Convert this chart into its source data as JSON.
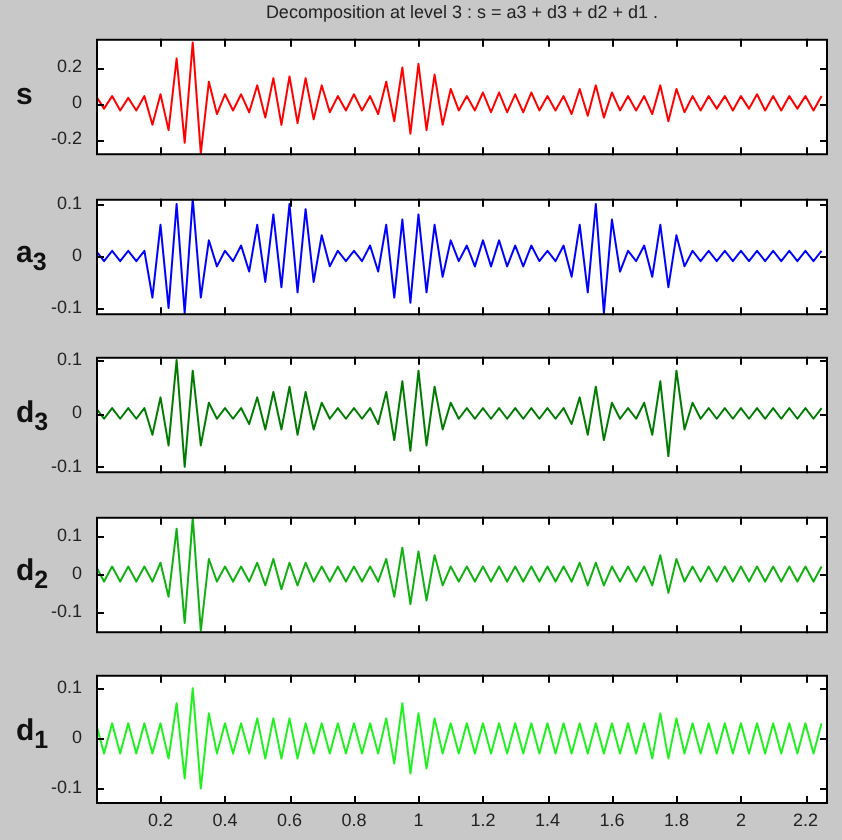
{
  "chart_data": [
    {
      "type": "line",
      "title": "Decomposition at level 3 : s = a3 + d3 + d2 + d1 .",
      "ylabel": "s",
      "tick_labels": "y",
      "x": [
        0,
        0.025,
        0.05,
        0.075,
        0.1,
        0.125,
        0.15,
        0.175,
        0.2,
        0.225,
        0.25,
        0.275,
        0.3,
        0.325,
        0.35,
        0.375,
        0.4,
        0.425,
        0.45,
        0.475,
        0.5,
        0.525,
        0.55,
        0.575,
        0.6,
        0.625,
        0.65,
        0.675,
        0.7,
        0.725,
        0.75,
        0.775,
        0.8,
        0.825,
        0.85,
        0.875,
        0.9,
        0.925,
        0.95,
        0.975,
        1,
        1.025,
        1.05,
        1.075,
        1.1,
        1.125,
        1.15,
        1.175,
        1.2,
        1.225,
        1.25,
        1.275,
        1.3,
        1.325,
        1.35,
        1.375,
        1.4,
        1.425,
        1.45,
        1.475,
        1.5,
        1.525,
        1.55,
        1.575,
        1.6,
        1.625,
        1.65,
        1.675,
        1.7,
        1.725,
        1.75,
        1.775,
        1.8,
        1.825,
        1.85,
        1.875,
        1.9,
        1.925,
        1.95,
        1.975,
        2,
        2.025,
        2.05,
        2.075,
        2.1,
        2.125,
        2.15,
        2.175,
        2.2,
        2.225,
        2.25
      ],
      "series": [
        {
          "color": "#ff0000",
          "values": [
            0.04,
            -0.03,
            0.04,
            -0.04,
            0.03,
            -0.04,
            0.04,
            -0.12,
            0.05,
            -0.15,
            0.25,
            -0.22,
            0.34,
            -0.28,
            0.12,
            -0.06,
            0.05,
            -0.04,
            0.05,
            -0.05,
            0.1,
            -0.08,
            0.14,
            -0.12,
            0.15,
            -0.11,
            0.14,
            -0.09,
            0.1,
            -0.05,
            0.04,
            -0.04,
            0.05,
            -0.04,
            0.04,
            -0.06,
            0.12,
            -0.1,
            0.2,
            -0.17,
            0.22,
            -0.15,
            0.16,
            -0.12,
            0.08,
            -0.04,
            0.04,
            -0.04,
            0.06,
            -0.05,
            0.06,
            -0.05,
            0.05,
            -0.05,
            0.06,
            -0.04,
            0.04,
            -0.04,
            0.04,
            -0.06,
            0.08,
            -0.07,
            0.1,
            -0.08,
            0.06,
            -0.04,
            0.04,
            -0.04,
            0.04,
            -0.06,
            0.1,
            -0.1,
            0.08,
            -0.05,
            0.04,
            -0.04,
            0.04,
            -0.03,
            0.04,
            -0.04,
            0.04,
            -0.03,
            0.05,
            -0.04,
            0.04,
            -0.04,
            0.04,
            -0.03,
            0.04,
            -0.04,
            0.04
          ]
        }
      ],
      "xlim": [
        0,
        2.27
      ],
      "ylim": [
        -0.29,
        0.36
      ],
      "xticks": [
        0.2,
        0.4,
        0.6,
        0.8,
        1,
        1.2,
        1.4,
        1.6,
        1.8,
        2,
        2.2
      ],
      "yticks": [
        -0.2,
        0,
        0.2
      ]
    },
    {
      "type": "line",
      "ylabel": "a$_{3}$",
      "tick_labels": "y",
      "x": [
        0,
        0.025,
        0.05,
        0.075,
        0.1,
        0.125,
        0.15,
        0.175,
        0.2,
        0.225,
        0.25,
        0.275,
        0.3,
        0.325,
        0.35,
        0.375,
        0.4,
        0.425,
        0.45,
        0.475,
        0.5,
        0.525,
        0.55,
        0.575,
        0.6,
        0.625,
        0.65,
        0.675,
        0.7,
        0.725,
        0.75,
        0.775,
        0.8,
        0.825,
        0.85,
        0.875,
        0.9,
        0.925,
        0.95,
        0.975,
        1,
        1.025,
        1.05,
        1.075,
        1.1,
        1.125,
        1.15,
        1.175,
        1.2,
        1.225,
        1.25,
        1.275,
        1.3,
        1.325,
        1.35,
        1.375,
        1.4,
        1.425,
        1.45,
        1.475,
        1.5,
        1.525,
        1.55,
        1.575,
        1.6,
        1.625,
        1.65,
        1.675,
        1.7,
        1.725,
        1.75,
        1.775,
        1.8,
        1.825,
        1.85,
        1.875,
        1.9,
        1.925,
        1.95,
        1.975,
        2,
        2.025,
        2.05,
        2.075,
        2.1,
        2.125,
        2.15,
        2.175,
        2.2,
        2.225,
        2.25
      ],
      "series": [
        {
          "color": "#0000ff",
          "values": [
            0.01,
            -0.01,
            0.01,
            -0.01,
            0.01,
            -0.01,
            0.01,
            -0.08,
            0.06,
            -0.1,
            0.1,
            -0.11,
            0.11,
            -0.08,
            0.03,
            -0.02,
            0.01,
            -0.01,
            0.02,
            -0.03,
            0.06,
            -0.05,
            0.08,
            -0.06,
            0.1,
            -0.07,
            0.09,
            -0.05,
            0.04,
            -0.02,
            0.01,
            -0.01,
            0.01,
            -0.01,
            0.02,
            -0.03,
            0.06,
            -0.08,
            0.07,
            -0.09,
            0.08,
            -0.07,
            0.06,
            -0.04,
            0.03,
            -0.01,
            0.02,
            -0.02,
            0.03,
            -0.02,
            0.03,
            -0.02,
            0.02,
            -0.02,
            0.02,
            -0.01,
            0.01,
            -0.01,
            0.02,
            -0.04,
            0.06,
            -0.07,
            0.1,
            -0.11,
            0.07,
            -0.03,
            0.01,
            -0.01,
            0.02,
            -0.04,
            0.06,
            -0.06,
            0.04,
            -0.02,
            0.01,
            -0.01,
            0.01,
            -0.01,
            0.01,
            -0.01,
            0.01,
            -0.01,
            0.01,
            -0.01,
            0.01,
            -0.01,
            0.01,
            -0.01,
            0.01,
            -0.01,
            0.01
          ]
        }
      ],
      "xlim": [
        0,
        2.27
      ],
      "ylim": [
        -0.114,
        0.11
      ],
      "xticks": [
        0.2,
        0.4,
        0.6,
        0.8,
        1,
        1.2,
        1.4,
        1.6,
        1.8,
        2,
        2.2
      ],
      "yticks": [
        -0.1,
        0,
        0.1
      ]
    },
    {
      "type": "line",
      "ylabel": "d$_{3}$",
      "tick_labels": "y",
      "x": [
        0,
        0.025,
        0.05,
        0.075,
        0.1,
        0.125,
        0.15,
        0.175,
        0.2,
        0.225,
        0.25,
        0.275,
        0.3,
        0.325,
        0.35,
        0.375,
        0.4,
        0.425,
        0.45,
        0.475,
        0.5,
        0.525,
        0.55,
        0.575,
        0.6,
        0.625,
        0.65,
        0.675,
        0.7,
        0.725,
        0.75,
        0.775,
        0.8,
        0.825,
        0.85,
        0.875,
        0.9,
        0.925,
        0.95,
        0.975,
        1,
        1.025,
        1.05,
        1.075,
        1.1,
        1.125,
        1.15,
        1.175,
        1.2,
        1.225,
        1.25,
        1.275,
        1.3,
        1.325,
        1.35,
        1.375,
        1.4,
        1.425,
        1.45,
        1.475,
        1.5,
        1.525,
        1.55,
        1.575,
        1.6,
        1.625,
        1.65,
        1.675,
        1.7,
        1.725,
        1.75,
        1.775,
        1.8,
        1.825,
        1.85,
        1.875,
        1.9,
        1.925,
        1.95,
        1.975,
        2,
        2.025,
        2.05,
        2.075,
        2.1,
        2.125,
        2.15,
        2.175,
        2.2,
        2.225,
        2.25
      ],
      "series": [
        {
          "color": "#007a00",
          "values": [
            0.01,
            -0.01,
            0.01,
            -0.01,
            0.01,
            -0.01,
            0.01,
            -0.04,
            0.03,
            -0.06,
            0.1,
            -0.1,
            0.08,
            -0.06,
            0.02,
            -0.01,
            0.01,
            -0.01,
            0.01,
            -0.02,
            0.03,
            -0.03,
            0.04,
            -0.03,
            0.05,
            -0.04,
            0.04,
            -0.03,
            0.02,
            -0.01,
            0.01,
            -0.01,
            0.01,
            -0.01,
            0.01,
            -0.02,
            0.04,
            -0.05,
            0.06,
            -0.07,
            0.08,
            -0.06,
            0.05,
            -0.03,
            0.02,
            -0.01,
            0.01,
            -0.01,
            0.01,
            -0.01,
            0.01,
            -0.01,
            0.01,
            -0.01,
            0.01,
            -0.01,
            0.01,
            -0.01,
            0.01,
            -0.02,
            0.03,
            -0.04,
            0.05,
            -0.05,
            0.02,
            -0.01,
            0.01,
            -0.01,
            0.02,
            -0.04,
            0.06,
            -0.08,
            0.08,
            -0.03,
            0.02,
            -0.01,
            0.01,
            -0.01,
            0.01,
            -0.01,
            0.01,
            -0.01,
            0.01,
            -0.01,
            0.01,
            -0.01,
            0.01,
            -0.01,
            0.01,
            -0.01,
            0.01
          ]
        }
      ],
      "xlim": [
        0,
        2.27
      ],
      "ylim": [
        -0.112,
        0.106
      ],
      "xticks": [
        0.2,
        0.4,
        0.6,
        0.8,
        1,
        1.2,
        1.4,
        1.6,
        1.8,
        2,
        2.2
      ],
      "yticks": [
        -0.1,
        0,
        0.1
      ]
    },
    {
      "type": "line",
      "ylabel": "d$_{2}$",
      "tick_labels": "y",
      "x": [
        0,
        0.025,
        0.05,
        0.075,
        0.1,
        0.125,
        0.15,
        0.175,
        0.2,
        0.225,
        0.25,
        0.275,
        0.3,
        0.325,
        0.35,
        0.375,
        0.4,
        0.425,
        0.45,
        0.475,
        0.5,
        0.525,
        0.55,
        0.575,
        0.6,
        0.625,
        0.65,
        0.675,
        0.7,
        0.725,
        0.75,
        0.775,
        0.8,
        0.825,
        0.85,
        0.875,
        0.9,
        0.925,
        0.95,
        0.975,
        1,
        1.025,
        1.05,
        1.075,
        1.1,
        1.125,
        1.15,
        1.175,
        1.2,
        1.225,
        1.25,
        1.275,
        1.3,
        1.325,
        1.35,
        1.375,
        1.4,
        1.425,
        1.45,
        1.475,
        1.5,
        1.525,
        1.55,
        1.575,
        1.6,
        1.625,
        1.65,
        1.675,
        1.7,
        1.725,
        1.75,
        1.775,
        1.8,
        1.825,
        1.85,
        1.875,
        1.9,
        1.925,
        1.95,
        1.975,
        2,
        2.025,
        2.05,
        2.075,
        2.1,
        2.125,
        2.15,
        2.175,
        2.2,
        2.225,
        2.25
      ],
      "series": [
        {
          "color": "#10b010",
          "values": [
            0.02,
            -0.02,
            0.02,
            -0.02,
            0.02,
            -0.02,
            0.02,
            -0.02,
            0.03,
            -0.06,
            0.12,
            -0.13,
            0.15,
            -0.15,
            0.04,
            -0.02,
            0.02,
            -0.02,
            0.02,
            -0.02,
            0.03,
            -0.03,
            0.04,
            -0.04,
            0.03,
            -0.03,
            0.03,
            -0.02,
            0.02,
            -0.02,
            0.02,
            -0.02,
            0.02,
            -0.02,
            0.02,
            -0.02,
            0.04,
            -0.06,
            0.07,
            -0.08,
            0.06,
            -0.07,
            0.05,
            -0.03,
            0.02,
            -0.02,
            0.02,
            -0.02,
            0.02,
            -0.02,
            0.02,
            -0.02,
            0.02,
            -0.02,
            0.02,
            -0.02,
            0.02,
            -0.02,
            0.02,
            -0.02,
            0.03,
            -0.03,
            0.03,
            -0.03,
            0.02,
            -0.02,
            0.02,
            -0.02,
            0.02,
            -0.03,
            0.05,
            -0.05,
            0.04,
            -0.02,
            0.02,
            -0.02,
            0.02,
            -0.02,
            0.02,
            -0.02,
            0.02,
            -0.02,
            0.02,
            -0.02,
            0.02,
            -0.02,
            0.02,
            -0.02,
            0.02,
            -0.02,
            0.02
          ]
        }
      ],
      "xlim": [
        0,
        2.27
      ],
      "ylim": [
        -0.157,
        0.152
      ],
      "xticks": [
        0.2,
        0.4,
        0.6,
        0.8,
        1,
        1.2,
        1.4,
        1.6,
        1.8,
        2,
        2.2
      ],
      "yticks": [
        -0.1,
        0,
        0.1
      ]
    },
    {
      "type": "line",
      "ylabel": "d$_{1}$",
      "x": [
        0,
        0.025,
        0.05,
        0.075,
        0.1,
        0.125,
        0.15,
        0.175,
        0.2,
        0.225,
        0.25,
        0.275,
        0.3,
        0.325,
        0.35,
        0.375,
        0.4,
        0.425,
        0.45,
        0.475,
        0.5,
        0.525,
        0.55,
        0.575,
        0.6,
        0.625,
        0.65,
        0.675,
        0.7,
        0.725,
        0.75,
        0.775,
        0.8,
        0.825,
        0.85,
        0.875,
        0.9,
        0.925,
        0.95,
        0.975,
        1,
        1.025,
        1.05,
        1.075,
        1.1,
        1.125,
        1.15,
        1.175,
        1.2,
        1.225,
        1.25,
        1.275,
        1.3,
        1.325,
        1.35,
        1.375,
        1.4,
        1.425,
        1.45,
        1.475,
        1.5,
        1.525,
        1.55,
        1.575,
        1.6,
        1.625,
        1.65,
        1.675,
        1.7,
        1.725,
        1.75,
        1.775,
        1.8,
        1.825,
        1.85,
        1.875,
        1.9,
        1.925,
        1.95,
        1.975,
        2,
        2.025,
        2.05,
        2.075,
        2.1,
        2.125,
        2.15,
        2.175,
        2.2,
        2.225,
        2.25
      ],
      "series": [
        {
          "color": "#20f020",
          "values": [
            0.03,
            -0.03,
            0.03,
            -0.03,
            0.03,
            -0.03,
            0.03,
            -0.03,
            0.03,
            -0.04,
            0.07,
            -0.08,
            0.1,
            -0.1,
            0.05,
            -0.03,
            0.03,
            -0.03,
            0.03,
            -0.03,
            0.04,
            -0.04,
            0.04,
            -0.04,
            0.04,
            -0.04,
            0.03,
            -0.03,
            0.03,
            -0.03,
            0.03,
            -0.03,
            0.03,
            -0.03,
            0.03,
            -0.03,
            0.04,
            -0.05,
            0.07,
            -0.07,
            0.05,
            -0.06,
            0.04,
            -0.03,
            0.03,
            -0.03,
            0.03,
            -0.03,
            0.03,
            -0.03,
            0.03,
            -0.03,
            0.03,
            -0.03,
            0.03,
            -0.03,
            0.03,
            -0.03,
            0.03,
            -0.03,
            0.03,
            -0.03,
            0.03,
            -0.03,
            0.03,
            -0.03,
            0.03,
            -0.03,
            0.03,
            -0.04,
            0.05,
            -0.04,
            0.04,
            -0.03,
            0.03,
            -0.03,
            0.03,
            -0.03,
            0.03,
            -0.03,
            0.03,
            -0.03,
            0.03,
            -0.03,
            0.03,
            -0.03,
            0.03,
            -0.03,
            0.03,
            -0.03,
            0.03
          ]
        }
      ],
      "xlim": [
        0,
        2.27
      ],
      "ylim": [
        -0.131,
        0.127
      ],
      "xticks": [
        0.2,
        0.4,
        0.6,
        0.8,
        1,
        1.2,
        1.4,
        1.6,
        1.8,
        2,
        2.2
      ],
      "yticks": [
        -0.1,
        0,
        0.1
      ]
    }
  ]
}
